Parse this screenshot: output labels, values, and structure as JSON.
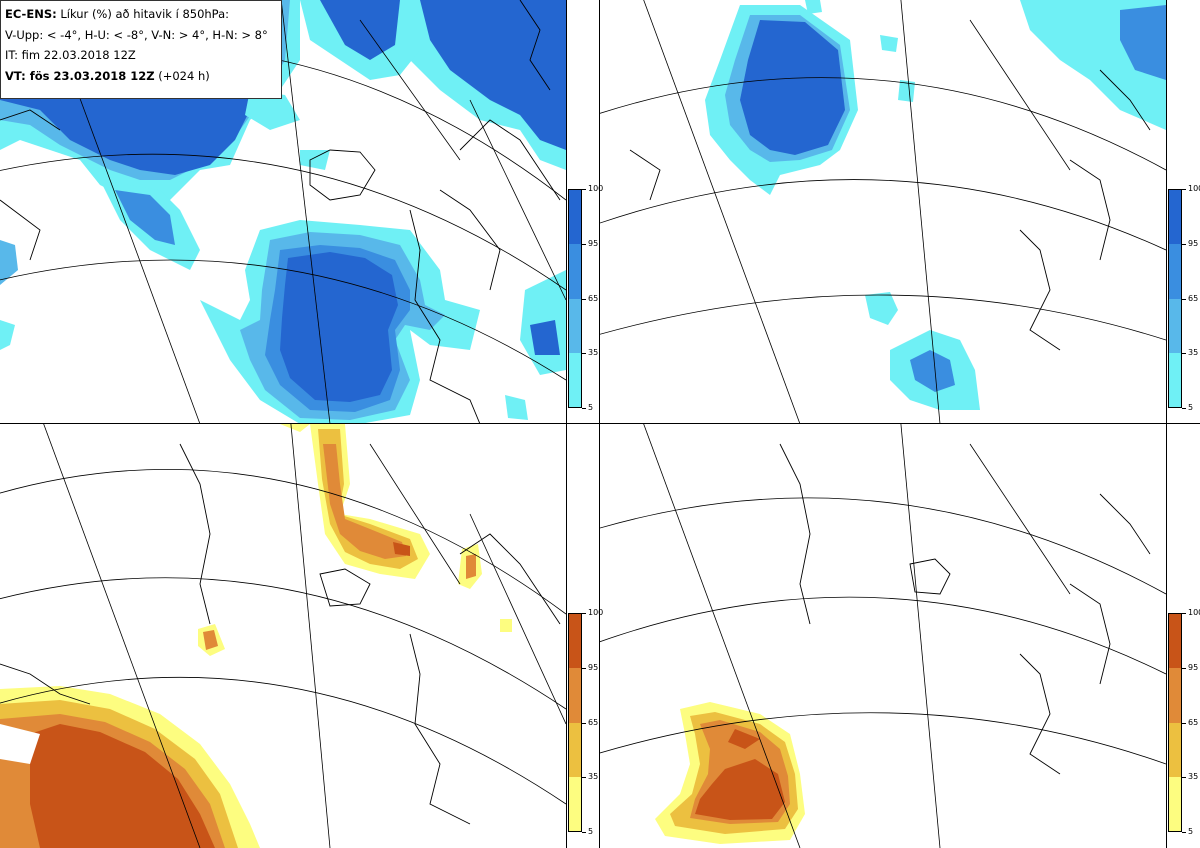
{
  "legend": {
    "model": "EC-ENS:",
    "title": "Líkur (%) að hitavik í 850hPa:",
    "thresholds": "V-Upp: < -4°, H-U: < -8°, V-N: > 4°, H-N: > 8°",
    "issue_time": "IT: fim 22.03.2018 12Z",
    "valid_label": "VT: fös 23.03.2018 12Z",
    "lead": "(+024 h)"
  },
  "colorbars": {
    "cold": {
      "labels": [
        "100",
        "95",
        "65",
        "35",
        "5"
      ],
      "colors": [
        "#2466d0",
        "#3a8ee0",
        "#58b8ea",
        "#6ff0f5"
      ]
    },
    "warm": {
      "labels": [
        "100",
        "95",
        "65",
        "35",
        "5"
      ],
      "colors": [
        "#c85418",
        "#e08a38",
        "#ecc040",
        "#fdfd80"
      ]
    }
  },
  "panels": [
    {
      "name": "V-Upp",
      "colormap": "cold"
    },
    {
      "name": "H-U",
      "colormap": "cold"
    },
    {
      "name": "V-N",
      "colormap": "warm"
    },
    {
      "name": "H-N",
      "colormap": "warm"
    }
  ]
}
